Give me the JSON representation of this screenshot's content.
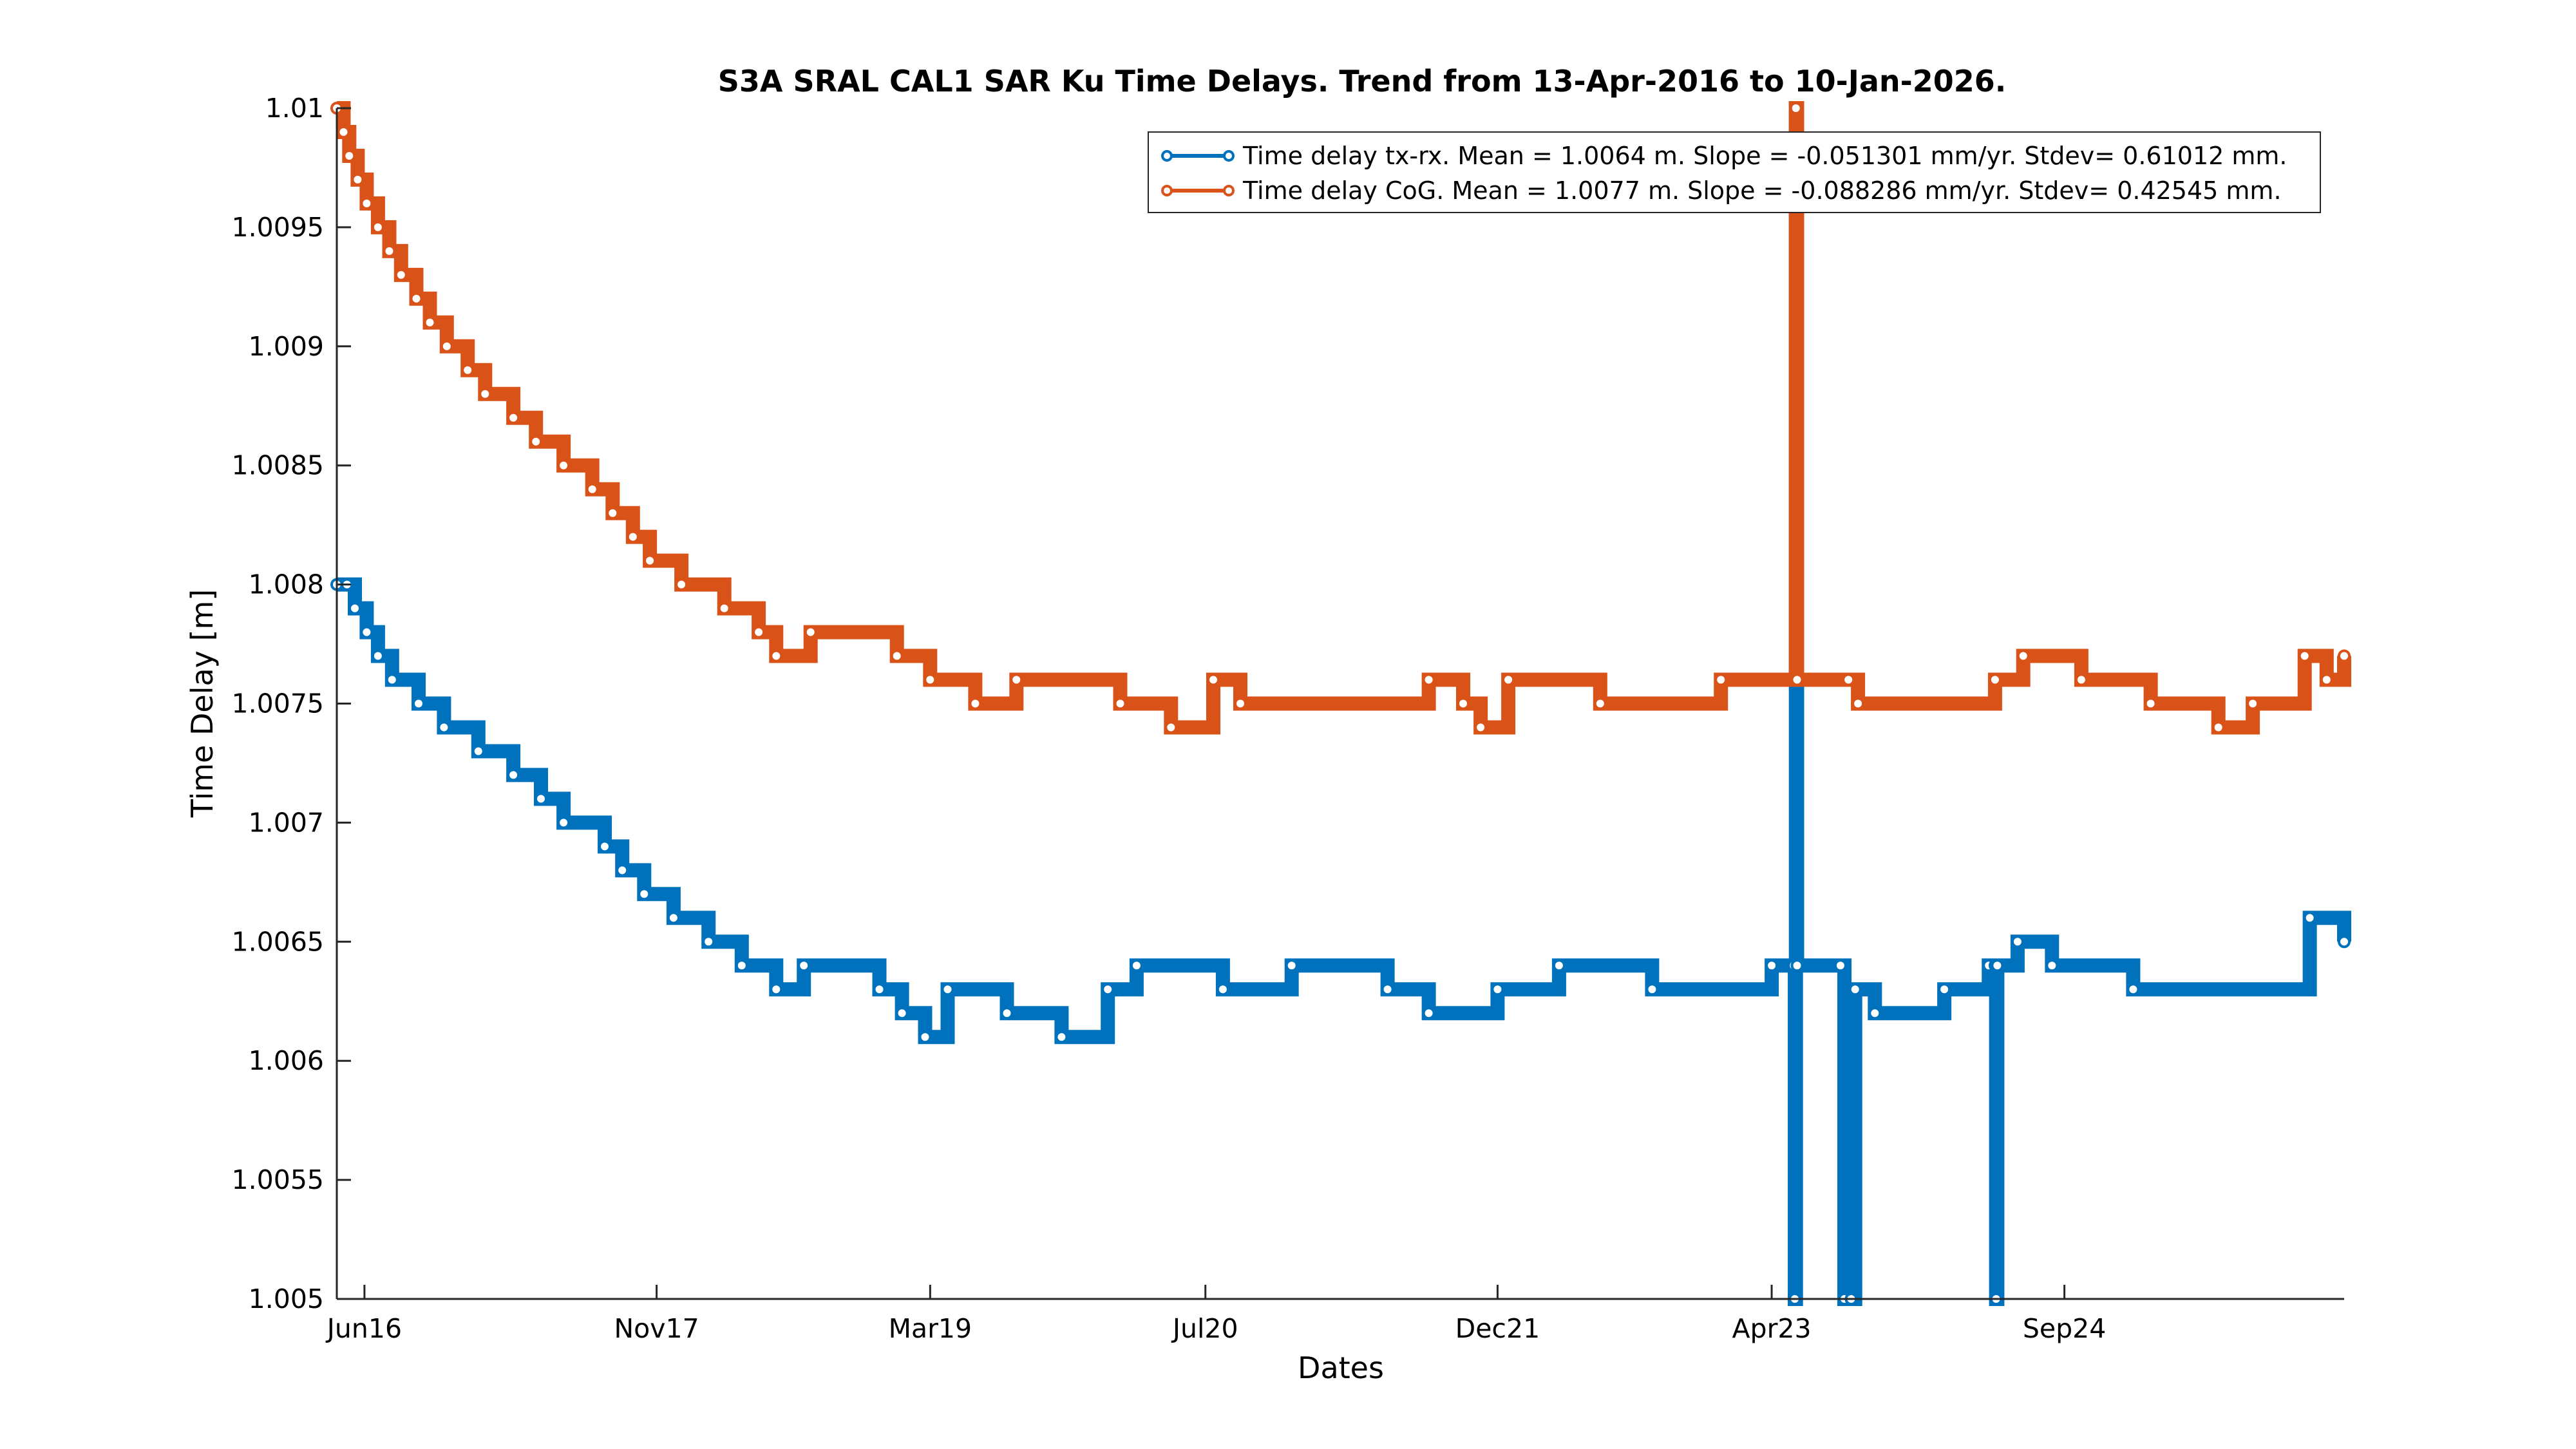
{
  "chart_data": {
    "type": "line",
    "title": "S3A SRAL CAL1 SAR Ku Time Delays. Trend from 13-Apr-2016 to 10-Jan-2026.",
    "xlabel": "Dates",
    "ylabel": "Time Delay [m]",
    "xlim": [
      "2016-04-13",
      "2026-01-10"
    ],
    "ylim": [
      1.005,
      1.01
    ],
    "yticks": [
      1.005,
      1.0055,
      1.006,
      1.0065,
      1.007,
      1.0075,
      1.008,
      1.0085,
      1.009,
      1.0095,
      1.01
    ],
    "ytick_labels": [
      "1.005",
      "1.0055",
      "1.006",
      "1.0065",
      "1.007",
      "1.0075",
      "1.008",
      "1.0085",
      "1.009",
      "1.0095",
      "1.01"
    ],
    "xticks": [
      "2016-06-01",
      "2017-11-01",
      "2019-03-01",
      "2020-07-01",
      "2021-12-01",
      "2023-04-01",
      "2024-09-01"
    ],
    "xtick_labels": [
      "Jun16",
      "Nov17",
      "Mar19",
      "Jul20",
      "Dec21",
      "Apr23",
      "Sep24"
    ],
    "grid": false,
    "legend_position": "top-right",
    "series": [
      {
        "name": "Time delay tx-rx. Mean = 1.0064 m. Slope = -0.051301 mm/yr. Stdev= 0.61012 mm.",
        "color": "#0072BD",
        "points": [
          [
            "2016-04-13",
            1.008
          ],
          [
            "2016-05-01",
            1.008
          ],
          [
            "2016-05-15",
            1.0079
          ],
          [
            "2016-06-05",
            1.0078
          ],
          [
            "2016-06-25",
            1.0077
          ],
          [
            "2016-07-20",
            1.0076
          ],
          [
            "2016-09-05",
            1.0075
          ],
          [
            "2016-10-20",
            1.0074
          ],
          [
            "2016-12-20",
            1.0073
          ],
          [
            "2017-02-20",
            1.0072
          ],
          [
            "2017-04-10",
            1.0071
          ],
          [
            "2017-05-20",
            1.007
          ],
          [
            "2017-08-01",
            1.0069
          ],
          [
            "2017-09-01",
            1.0068
          ],
          [
            "2017-10-10",
            1.0067
          ],
          [
            "2017-12-01",
            1.0066
          ],
          [
            "2018-02-01",
            1.0065
          ],
          [
            "2018-04-01",
            1.0064
          ],
          [
            "2018-06-01",
            1.0063
          ],
          [
            "2018-07-20",
            1.0064
          ],
          [
            "2018-12-01",
            1.0063
          ],
          [
            "2019-01-10",
            1.0062
          ],
          [
            "2019-02-20",
            1.0061
          ],
          [
            "2019-04-01",
            1.0063
          ],
          [
            "2019-07-15",
            1.0062
          ],
          [
            "2019-10-20",
            1.0061
          ],
          [
            "2020-01-10",
            1.0063
          ],
          [
            "2020-03-01",
            1.0064
          ],
          [
            "2020-08-01",
            1.0063
          ],
          [
            "2020-12-01",
            1.0064
          ],
          [
            "2021-05-20",
            1.0063
          ],
          [
            "2021-08-01",
            1.0062
          ],
          [
            "2021-12-01",
            1.0063
          ],
          [
            "2022-03-20",
            1.0064
          ],
          [
            "2022-09-01",
            1.0063
          ],
          [
            "2023-04-01",
            1.0064
          ],
          [
            "2023-05-10",
            1.0064
          ],
          [
            "2023-05-12",
            1.005
          ],
          [
            "2023-05-14",
            1.01
          ],
          [
            "2023-05-16",
            1.0064
          ],
          [
            "2023-08-01",
            1.0064
          ],
          [
            "2023-08-08",
            1.005
          ],
          [
            "2023-08-20",
            1.005
          ],
          [
            "2023-08-27",
            1.0063
          ],
          [
            "2023-10-01",
            1.0062
          ],
          [
            "2024-02-01",
            1.0063
          ],
          [
            "2024-04-20",
            1.0064
          ],
          [
            "2024-05-01",
            1.0064
          ],
          [
            "2024-05-03",
            1.005
          ],
          [
            "2024-05-05",
            1.0064
          ],
          [
            "2024-06-10",
            1.0065
          ],
          [
            "2024-08-10",
            1.0064
          ],
          [
            "2025-01-01",
            1.0063
          ],
          [
            "2025-11-10",
            1.0066
          ],
          [
            "2026-01-10",
            1.0065
          ]
        ]
      },
      {
        "name": "Time delay CoG. Mean = 1.0077 m. Slope = -0.088286 mm/yr. Stdev= 0.42545 mm.",
        "color": "#D95319",
        "points": [
          [
            "2016-04-13",
            1.01
          ],
          [
            "2016-04-25",
            1.0099
          ],
          [
            "2016-05-05",
            1.0098
          ],
          [
            "2016-05-20",
            1.0097
          ],
          [
            "2016-06-05",
            1.0096
          ],
          [
            "2016-06-25",
            1.0095
          ],
          [
            "2016-07-15",
            1.0094
          ],
          [
            "2016-08-05",
            1.0093
          ],
          [
            "2016-09-01",
            1.0092
          ],
          [
            "2016-09-25",
            1.0091
          ],
          [
            "2016-10-25",
            1.009
          ],
          [
            "2016-12-01",
            1.0089
          ],
          [
            "2017-01-01",
            1.0088
          ],
          [
            "2017-02-20",
            1.0087
          ],
          [
            "2017-04-01",
            1.0086
          ],
          [
            "2017-05-20",
            1.0085
          ],
          [
            "2017-07-10",
            1.0084
          ],
          [
            "2017-08-15",
            1.0083
          ],
          [
            "2017-09-20",
            1.0082
          ],
          [
            "2017-10-20",
            1.0081
          ],
          [
            "2017-12-15",
            1.008
          ],
          [
            "2018-03-01",
            1.0079
          ],
          [
            "2018-05-01",
            1.0078
          ],
          [
            "2018-06-01",
            1.0077
          ],
          [
            "2018-08-01",
            1.0078
          ],
          [
            "2019-01-01",
            1.0077
          ],
          [
            "2019-03-01",
            1.0076
          ],
          [
            "2019-05-20",
            1.0075
          ],
          [
            "2019-08-01",
            1.0076
          ],
          [
            "2020-02-01",
            1.0075
          ],
          [
            "2020-05-01",
            1.0074
          ],
          [
            "2020-07-15",
            1.0076
          ],
          [
            "2020-09-01",
            1.0075
          ],
          [
            "2021-08-01",
            1.0076
          ],
          [
            "2021-10-01",
            1.0075
          ],
          [
            "2021-11-01",
            1.0074
          ],
          [
            "2021-12-20",
            1.0076
          ],
          [
            "2022-06-01",
            1.0075
          ],
          [
            "2023-01-01",
            1.0076
          ],
          [
            "2023-05-12",
            1.0076
          ],
          [
            "2023-05-14",
            1.01
          ],
          [
            "2023-05-16",
            1.0076
          ],
          [
            "2023-08-15",
            1.0076
          ],
          [
            "2023-09-01",
            1.0075
          ],
          [
            "2024-05-01",
            1.0076
          ],
          [
            "2024-06-20",
            1.0077
          ],
          [
            "2024-10-01",
            1.0076
          ],
          [
            "2025-02-01",
            1.0075
          ],
          [
            "2025-06-01",
            1.0074
          ],
          [
            "2025-08-01",
            1.0075
          ],
          [
            "2025-11-01",
            1.0077
          ],
          [
            "2025-12-10",
            1.0076
          ],
          [
            "2026-01-10",
            1.0077
          ]
        ]
      }
    ]
  }
}
